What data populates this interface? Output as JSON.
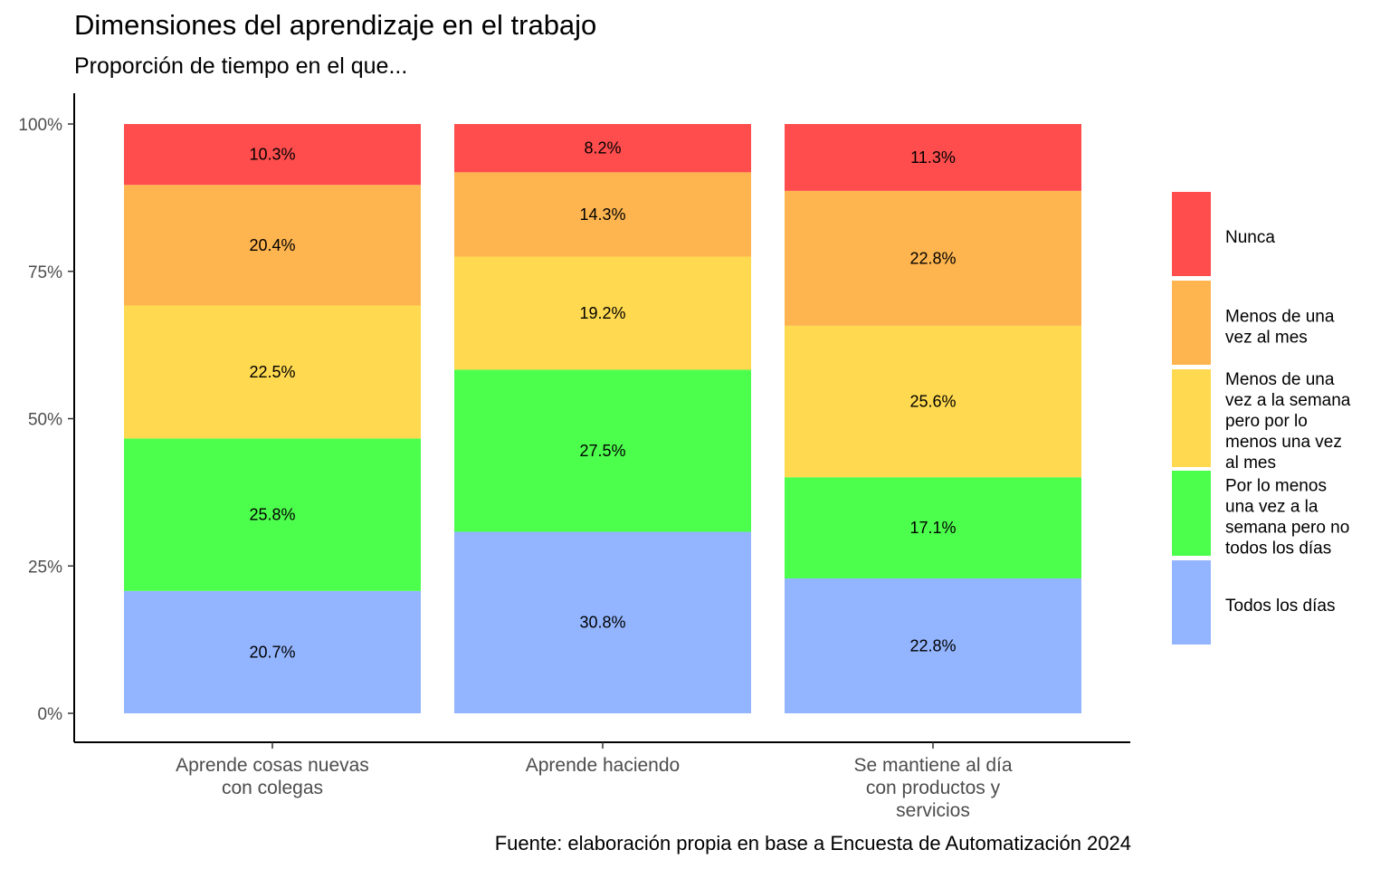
{
  "chart_data": {
    "type": "bar",
    "stacked": true,
    "percent_stacked": true,
    "title": "Dimensiones del aprendizaje en el trabajo",
    "subtitle": "Proporción de tiempo en el que...",
    "caption": "Fuente: elaboración propia en base a Encuesta de Automatización 2024",
    "categories": [
      [
        "Aprende cosas nuevas",
        "con colegas"
      ],
      [
        "Aprende haciendo"
      ],
      [
        "Se mantiene al día",
        "con productos y",
        "servicios"
      ]
    ],
    "ylim": [
      0,
      100
    ],
    "yticks": [
      0,
      25,
      50,
      75,
      100
    ],
    "ytick_labels": [
      "0%",
      "25%",
      "50%",
      "75%",
      "100%"
    ],
    "grid": false,
    "legend_position": "right",
    "series": [
      {
        "name": [
          "Todos los días"
        ],
        "color": "#93B5FF",
        "values": [
          20.7,
          30.8,
          22.8
        ],
        "labels": [
          "20.7%",
          "30.8%",
          "22.8%"
        ]
      },
      {
        "name": [
          "Por lo menos",
          "una vez a la",
          "semana pero no",
          "todos los días"
        ],
        "color": "#4DFF4D",
        "values": [
          25.8,
          27.5,
          17.1
        ],
        "labels": [
          "25.8%",
          "27.5%",
          "17.1%"
        ]
      },
      {
        "name": [
          "Menos de una",
          "vez a la semana",
          "pero por lo",
          "menos una vez",
          "al mes"
        ],
        "color": "#FFD94F",
        "values": [
          22.5,
          19.2,
          25.6
        ],
        "labels": [
          "22.5%",
          "19.2%",
          "25.6%"
        ]
      },
      {
        "name": [
          "Menos de una",
          "vez al mes"
        ],
        "color": "#FFB54F",
        "values": [
          20.4,
          14.3,
          22.8
        ],
        "labels": [
          "20.4%",
          "14.3%",
          "22.8%"
        ]
      },
      {
        "name": [
          "Nunca"
        ],
        "color": "#FF4D4D",
        "values": [
          10.3,
          8.2,
          11.3
        ],
        "labels": [
          "10.3%",
          "8.2%",
          "11.3%"
        ]
      }
    ]
  }
}
